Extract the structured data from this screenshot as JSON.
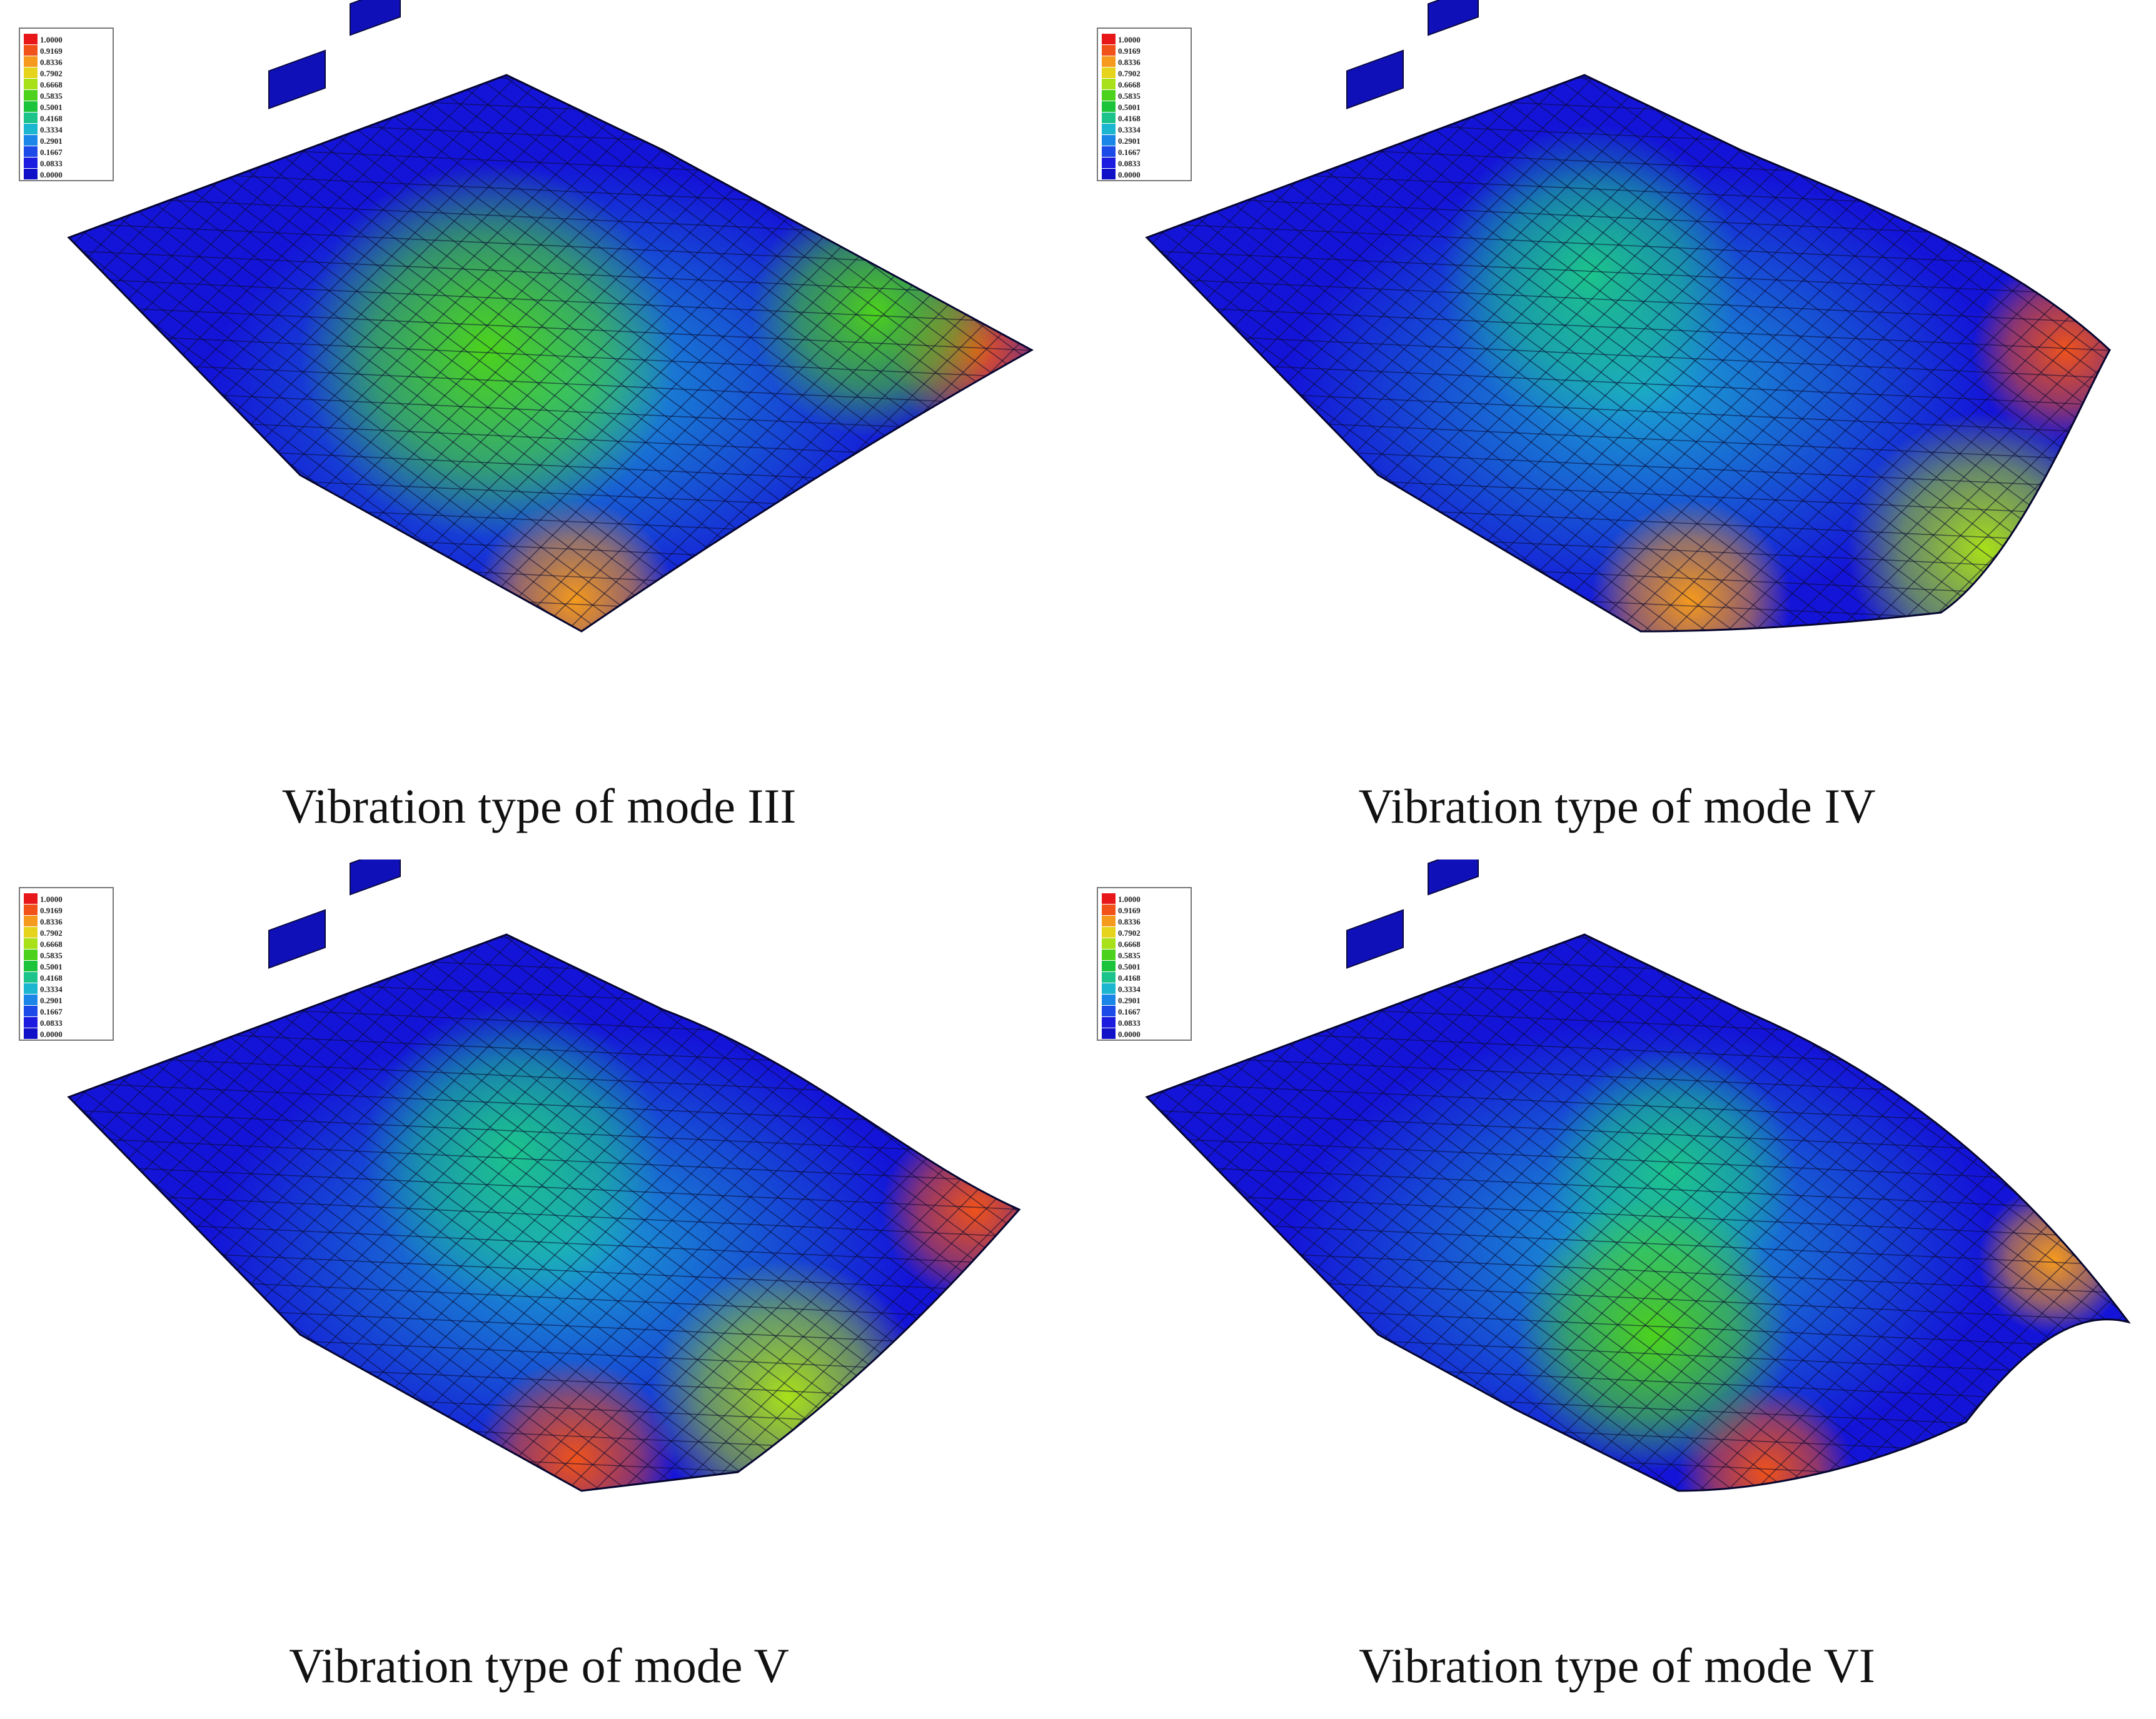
{
  "legend": {
    "levels": [
      "1.0000",
      "0.9169",
      "0.8336",
      "0.7902",
      "0.6668",
      "0.5835",
      "0.5001",
      "0.4168",
      "0.3334",
      "0.2901",
      "0.1667",
      "0.0833",
      "0.0000"
    ],
    "colors": [
      "#e8181a",
      "#f0521a",
      "#f59a1c",
      "#e6d31c",
      "#a8e01a",
      "#4cd21c",
      "#1cc43c",
      "#1cc48c",
      "#1cb6d0",
      "#1c86e8",
      "#1c4ae8",
      "#1c1ce0",
      "#1010c8"
    ]
  },
  "panels": [
    {
      "caption": "Vibration type of mode III"
    },
    {
      "caption": "Vibration type of mode IV"
    },
    {
      "caption": "Vibration type of mode V"
    },
    {
      "caption": "Vibration type of mode VI"
    }
  ]
}
